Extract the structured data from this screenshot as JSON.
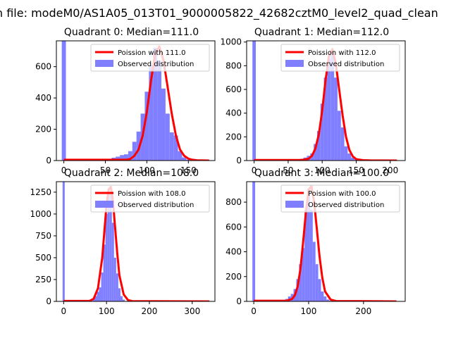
{
  "figure": {
    "suptitle": "n file: modeM0/AS1A05_013T01_9000005822_42682cztM0_level2_quad_clean"
  },
  "colors": {
    "fit_line": "#ff0000",
    "histogram": "#7f7fff",
    "axes": "#000000",
    "legend_border": "#cccccc"
  },
  "chart_data": [
    {
      "type": "bar",
      "title": "Quadrant 0: Median=111.0",
      "xlim": [
        -9,
        182
      ],
      "ylim": [
        0,
        765
      ],
      "xticks": [
        0,
        50,
        100,
        150
      ],
      "yticks": [
        0,
        200,
        400,
        600
      ],
      "legend": {
        "location": "upper right",
        "entries": [
          "Poission with 111.0",
          "Observed distribution"
        ]
      },
      "series": [
        {
          "name": "Poission with 111.0",
          "mean": 111.0,
          "x": [
            0,
            75,
            80,
            85,
            90,
            95,
            100,
            105,
            110,
            115,
            120,
            125,
            130,
            135,
            140,
            145,
            150,
            155,
            160,
            165,
            175
          ],
          "values": [
            5,
            5,
            10,
            30,
            70,
            160,
            310,
            510,
            680,
            730,
            640,
            470,
            300,
            160,
            70,
            30,
            12,
            5,
            2,
            1,
            0
          ]
        },
        {
          "name": "Observed distribution",
          "x": [
            0,
            50,
            55,
            60,
            65,
            70,
            75,
            80,
            85,
            90,
            95,
            100,
            105,
            110,
            115,
            120,
            125,
            130,
            135,
            140,
            145,
            150,
            155,
            160,
            165,
            170
          ],
          "values": [
            765,
            3,
            10,
            18,
            25,
            35,
            40,
            60,
            120,
            185,
            300,
            440,
            610,
            720,
            640,
            460,
            300,
            180,
            160,
            60,
            20,
            6,
            3,
            2,
            1,
            1
          ]
        }
      ]
    },
    {
      "type": "bar",
      "title": "Quadrant 1: Median=112.0",
      "xlim": [
        -11,
        222
      ],
      "ylim": [
        0,
        1010
      ],
      "xticks": [
        0,
        50,
        100,
        150,
        200
      ],
      "yticks": [
        0,
        200,
        400,
        600,
        800,
        1000
      ],
      "legend": {
        "location": "upper right",
        "entries": [
          "Poission with 112.0",
          "Observed distribution"
        ]
      },
      "series": [
        {
          "name": "Poission with 112.0",
          "mean": 112.0,
          "x": [
            0,
            70,
            80,
            85,
            90,
            95,
            100,
            105,
            110,
            115,
            120,
            125,
            130,
            135,
            140,
            145,
            150,
            160,
            170,
            210
          ],
          "values": [
            5,
            5,
            15,
            40,
            100,
            220,
            420,
            680,
            880,
            940,
            820,
            600,
            380,
            200,
            90,
            35,
            12,
            3,
            1,
            0
          ]
        },
        {
          "name": "Observed distribution",
          "x": [
            0,
            60,
            65,
            70,
            75,
            80,
            85,
            90,
            95,
            100,
            105,
            110,
            115,
            120,
            125,
            130,
            135,
            140,
            145,
            150,
            155,
            160
          ],
          "values": [
            1010,
            5,
            10,
            15,
            25,
            40,
            60,
            140,
            250,
            480,
            700,
            860,
            920,
            700,
            420,
            280,
            120,
            60,
            25,
            8,
            3,
            1
          ]
        }
      ]
    },
    {
      "type": "bar",
      "title": "Quadrant 2: Median=108.0",
      "xlim": [
        -17,
        353
      ],
      "ylim": [
        0,
        1370
      ],
      "xticks": [
        0,
        100,
        200,
        300
      ],
      "yticks": [
        0,
        250,
        500,
        750,
        1000,
        1250
      ],
      "legend": {
        "location": "upper right",
        "entries": [
          "Poission with 108.0",
          "Observed distribution"
        ]
      },
      "series": [
        {
          "name": "Poission with 108.0",
          "mean": 108.0,
          "x": [
            0,
            60,
            70,
            80,
            90,
            95,
            100,
            105,
            110,
            115,
            120,
            125,
            130,
            140,
            150,
            160,
            340
          ],
          "values": [
            5,
            5,
            30,
            150,
            500,
            800,
            1100,
            1280,
            1310,
            1150,
            850,
            550,
            300,
            80,
            15,
            3,
            0
          ]
        },
        {
          "name": "Observed distribution",
          "x": [
            0,
            60,
            70,
            75,
            80,
            85,
            90,
            95,
            100,
            105,
            110,
            115,
            120,
            125,
            130,
            135,
            140,
            150
          ],
          "values": [
            1370,
            8,
            30,
            60,
            110,
            160,
            330,
            650,
            1000,
            1250,
            1240,
            900,
            500,
            320,
            150,
            60,
            20,
            5
          ]
        }
      ]
    },
    {
      "type": "bar",
      "title": "Quadrant 3: Median=100.0",
      "xlim": [
        -13,
        276
      ],
      "ylim": [
        0,
        965
      ],
      "xticks": [
        0,
        100,
        200
      ],
      "yticks": [
        0,
        200,
        400,
        600,
        800
      ],
      "legend": {
        "location": "upper right",
        "entries": [
          "Poission with 100.0",
          "Observed distribution"
        ]
      },
      "series": [
        {
          "name": "Poission with 100.0",
          "mean": 100.0,
          "x": [
            0,
            60,
            70,
            75,
            80,
            85,
            90,
            95,
            100,
            105,
            110,
            115,
            120,
            125,
            130,
            140,
            150,
            260
          ],
          "values": [
            5,
            5,
            20,
            50,
            120,
            260,
            480,
            720,
            900,
            930,
            800,
            580,
            360,
            190,
            80,
            15,
            3,
            0
          ]
        },
        {
          "name": "Observed distribution",
          "x": [
            0,
            50,
            55,
            60,
            65,
            70,
            75,
            80,
            85,
            90,
            95,
            100,
            105,
            110,
            115,
            120,
            125,
            130,
            135,
            140,
            150
          ],
          "values": [
            965,
            8,
            12,
            20,
            40,
            60,
            100,
            180,
            300,
            430,
            740,
            910,
            740,
            480,
            300,
            180,
            80,
            40,
            15,
            5,
            2
          ]
        }
      ]
    }
  ]
}
